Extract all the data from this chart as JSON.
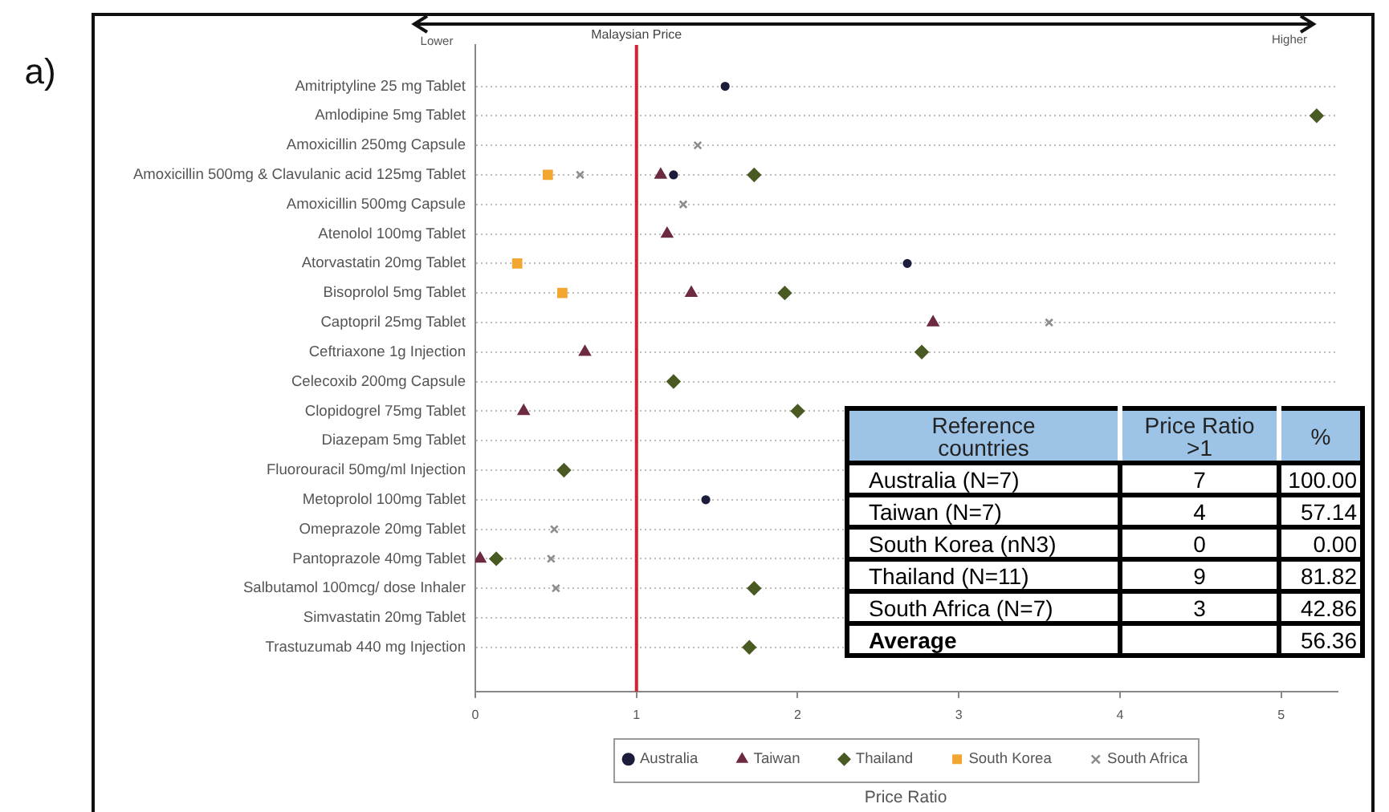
{
  "chart_data": [
    {
      "type": "scatter",
      "orientation": "horizontal",
      "xlabel": "Price Ratio",
      "categories": [
        "Amitriptyline 25 mg Tablet",
        "Amlodipine 5mg Tablet",
        "Amoxicillin 250mg Capsule",
        "Amoxicillin 500mg & Clavulanic acid 125mg Tablet",
        "Amoxicillin 500mg Capsule",
        "Atenolol 100mg Tablet",
        "Atorvastatin 20mg Tablet",
        "Bisoprolol 5mg Tablet",
        "Captopril 25mg Tablet",
        "Ceftriaxone 1g Injection",
        "Celecoxib 200mg Capsule",
        "Clopidogrel 75mg Tablet",
        "Diazepam 5mg Tablet",
        "Fluorouracil 50mg/ml Injection",
        "Metoprolol 100mg Tablet",
        "Omeprazole 20mg Tablet",
        "Pantoprazole 40mg Tablet",
        "Salbutamol 100mcg/ dose Inhaler",
        "Simvastatin 20mg Tablet",
        "Trastuzumab 440 mg Injection"
      ],
      "series": [
        {
          "name": "Australia",
          "color": "#1c1c3c",
          "marker": "circle",
          "values": [
            1.55,
            null,
            null,
            1.23,
            null,
            null,
            2.68,
            null,
            null,
            null,
            null,
            null,
            null,
            null,
            1.43,
            null,
            null,
            null,
            null,
            null
          ]
        },
        {
          "name": "Taiwan",
          "color": "#6e2a40",
          "marker": "triangle",
          "values": [
            null,
            null,
            null,
            1.15,
            null,
            1.19,
            null,
            1.34,
            2.84,
            0.68,
            null,
            0.3,
            null,
            null,
            null,
            null,
            0.03,
            null,
            null,
            null
          ]
        },
        {
          "name": "Thailand",
          "color": "#4a5a23",
          "marker": "diamond",
          "values": [
            null,
            5.22,
            null,
            1.73,
            null,
            null,
            null,
            1.92,
            null,
            2.77,
            1.23,
            2.0,
            null,
            0.55,
            null,
            null,
            0.13,
            1.73,
            null,
            1.7
          ]
        },
        {
          "name": "South Korea",
          "color": "#f2a630",
          "marker": "square",
          "values": [
            null,
            null,
            null,
            0.45,
            null,
            null,
            0.26,
            0.54,
            null,
            null,
            null,
            null,
            null,
            null,
            null,
            null,
            null,
            null,
            null,
            null
          ]
        },
        {
          "name": "South Africa",
          "color": "#8c8c8c",
          "marker": "cross",
          "values": [
            null,
            null,
            1.38,
            0.65,
            1.29,
            null,
            null,
            null,
            3.56,
            null,
            null,
            null,
            null,
            null,
            null,
            0.49,
            0.47,
            0.5,
            null,
            null
          ]
        }
      ],
      "xlim": [
        0,
        5.35
      ],
      "xticks": [
        0,
        1,
        2,
        3,
        4,
        5
      ],
      "grid": "y",
      "legend": "bottom",
      "ref_lines": [
        {
          "axis": "x",
          "value": 1,
          "label": "Malaysian Price",
          "color": "#d42030"
        }
      ],
      "annotations": [
        "a)",
        "Lower",
        "Higher"
      ]
    },
    {
      "type": "heatmap",
      "ylabel": "Reference countries",
      "categories": [
        "Price Ratio >1",
        "%"
      ],
      "y_categories": [
        "Australia (N=7)",
        "Taiwan (N=7)",
        "South Korea (nN3)",
        "Thailand (N=11)",
        "South Africa (N=7)",
        "Average"
      ],
      "cells": [
        [
          7,
          100.0
        ],
        [
          4,
          57.14
        ],
        [
          0,
          0.0
        ],
        [
          9,
          81.82
        ],
        [
          3,
          42.86
        ],
        [
          null,
          56.36
        ]
      ],
      "cell_labels": [
        [
          "7",
          "100.00"
        ],
        [
          "4",
          "57.14"
        ],
        [
          "0",
          "0.00"
        ],
        [
          "9",
          "81.82"
        ],
        [
          "3",
          "42.86"
        ],
        [
          null,
          "56.36"
        ]
      ],
      "data_labels": true
    }
  ]
}
